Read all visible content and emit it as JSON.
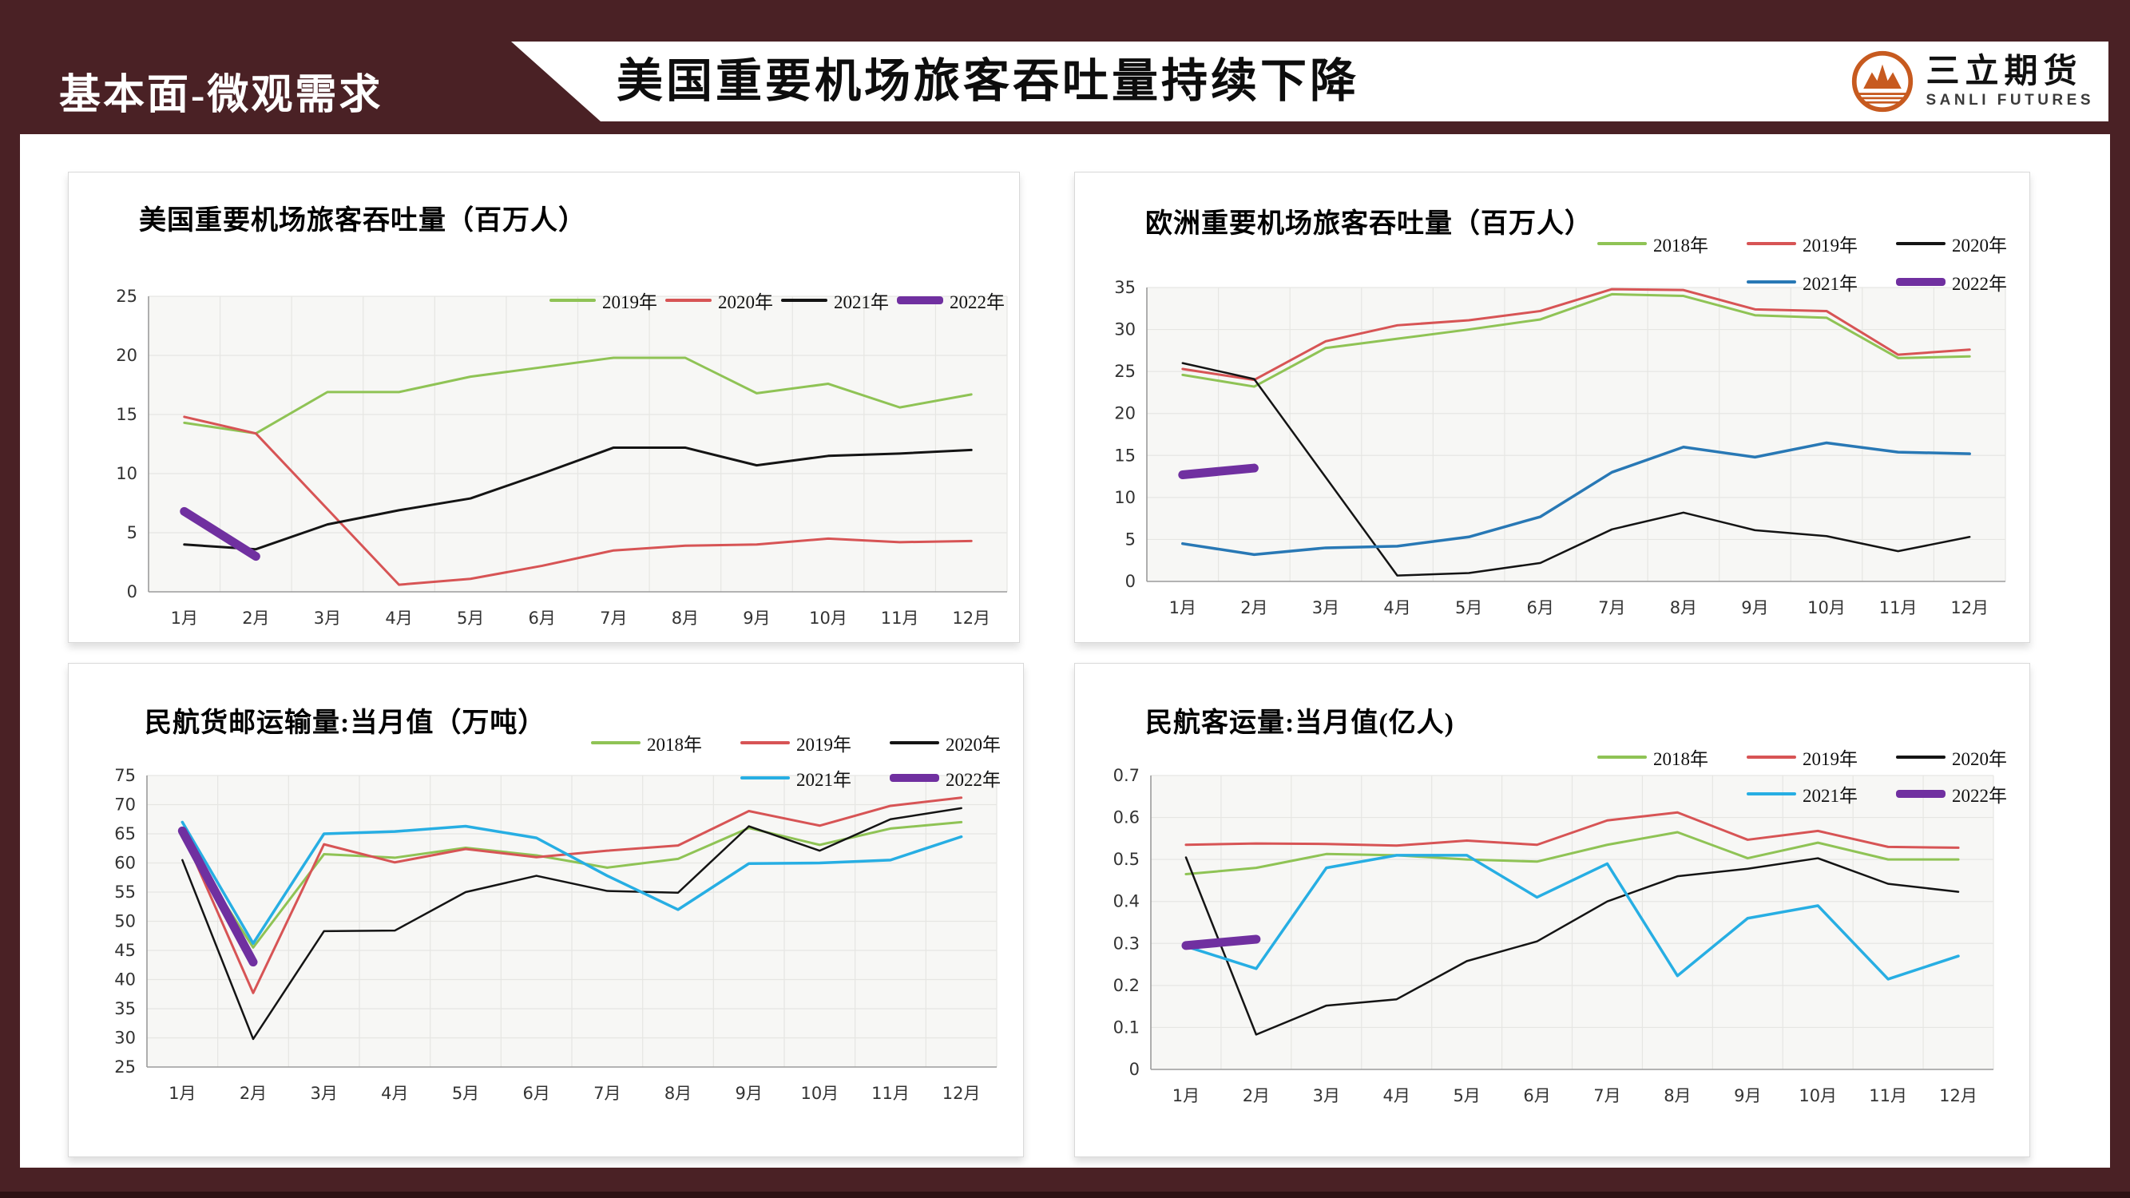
{
  "header": {
    "section_label": "基本面-微观需求",
    "title": "美国重要机场旅客吞吐量持续下降",
    "logo": {
      "cn": "三立期货",
      "en": "SANLI FUTURES",
      "mark_color": "#C75A1F"
    }
  },
  "colors": {
    "slide_maroon": "#4A2125",
    "slide_maroon_dark": "#2D1113",
    "plot_background": "#F7F7F5",
    "gridline": "#E6E6E3",
    "axis_line": "#9B9B9B",
    "tick_text": "#333333"
  },
  "chart_data": [
    {
      "type": "line",
      "title": "美国重要机场旅客吞吐量（百万人）",
      "categories": [
        "1月",
        "2月",
        "3月",
        "4月",
        "5月",
        "6月",
        "7月",
        "8月",
        "9月",
        "10月",
        "11月",
        "12月"
      ],
      "ylim": [
        0,
        25
      ],
      "ytick_values": [
        0,
        5,
        10,
        15,
        20,
        25
      ],
      "ytick_labels": [
        "0",
        "5",
        "10",
        "15",
        "20",
        "25"
      ],
      "grid": true,
      "legend_position": "top-right",
      "legend_split": 4,
      "series": [
        {
          "name": "2019年",
          "color": "#8FC355",
          "width": 3,
          "values": [
            14.3,
            13.4,
            16.9,
            16.9,
            18.2,
            19.0,
            19.8,
            19.8,
            16.8,
            17.6,
            15.6,
            16.7
          ]
        },
        {
          "name": "2020年",
          "color": "#D75455",
          "width": 3,
          "values": [
            14.8,
            13.4,
            7.0,
            0.6,
            1.1,
            2.2,
            3.5,
            3.9,
            4.0,
            4.5,
            4.2,
            4.3
          ]
        },
        {
          "name": "2021年",
          "color": "#141414",
          "width": 3,
          "values": [
            4.0,
            3.6,
            5.7,
            6.9,
            7.9,
            10.0,
            12.2,
            12.2,
            10.7,
            11.5,
            11.7,
            12.0
          ]
        },
        {
          "name": "2022年",
          "color": "#7030A0",
          "width": 11,
          "values": [
            6.8,
            3.0
          ]
        }
      ]
    },
    {
      "type": "line",
      "title": "欧洲重要机场旅客吞吐量（百万人）",
      "categories": [
        "1月",
        "2月",
        "3月",
        "4月",
        "5月",
        "6月",
        "7月",
        "8月",
        "9月",
        "10月",
        "11月",
        "12月"
      ],
      "ylim": [
        0,
        35
      ],
      "ytick_values": [
        0,
        5,
        10,
        15,
        20,
        25,
        30,
        35
      ],
      "ytick_labels": [
        "0",
        "5",
        "10",
        "15",
        "20",
        "25",
        "30",
        "35"
      ],
      "grid": true,
      "legend_position": "top-right",
      "legend_split": 3,
      "series": [
        {
          "name": "2018年",
          "color": "#8FC355",
          "width": 3,
          "values": [
            24.6,
            23.2,
            27.8,
            28.9,
            30.0,
            31.2,
            34.2,
            34.0,
            31.7,
            31.4,
            26.6,
            26.8
          ]
        },
        {
          "name": "2019年",
          "color": "#D75455",
          "width": 3,
          "values": [
            25.3,
            24.0,
            28.6,
            30.5,
            31.1,
            32.2,
            34.8,
            34.7,
            32.4,
            32.2,
            27.0,
            27.6
          ]
        },
        {
          "name": "2020年",
          "color": "#141414",
          "width": 2.5,
          "values": [
            26.0,
            24.1,
            12.4,
            0.7,
            1.0,
            2.2,
            6.2,
            8.2,
            6.1,
            5.4,
            3.6,
            5.3
          ]
        },
        {
          "name": "2021年",
          "color": "#2878B5",
          "width": 3.5,
          "values": [
            4.5,
            3.2,
            4.0,
            4.2,
            5.3,
            7.7,
            13.0,
            16.0,
            14.8,
            16.5,
            15.4,
            15.2
          ]
        },
        {
          "name": "2022年",
          "color": "#7030A0",
          "width": 11,
          "values": [
            12.7,
            13.5
          ]
        }
      ]
    },
    {
      "type": "line",
      "title": "民航货邮运输量:当月值（万吨）",
      "categories": [
        "1月",
        "2月",
        "3月",
        "4月",
        "5月",
        "6月",
        "7月",
        "8月",
        "9月",
        "10月",
        "11月",
        "12月"
      ],
      "ylim": [
        25,
        75
      ],
      "ytick_values": [
        25,
        30,
        35,
        40,
        45,
        50,
        55,
        60,
        65,
        70,
        75
      ],
      "ytick_labels": [
        "25",
        "30",
        "35",
        "40",
        "45",
        "50",
        "55",
        "60",
        "65",
        "70",
        "75"
      ],
      "grid": true,
      "legend_position": "top-right",
      "legend_split": 3,
      "series": [
        {
          "name": "2018年",
          "color": "#8FC355",
          "width": 3,
          "values": [
            64.4,
            45.5,
            61.5,
            60.9,
            62.6,
            61.3,
            59.2,
            60.7,
            66.0,
            63.1,
            65.9,
            67.0
          ]
        },
        {
          "name": "2019年",
          "color": "#D75455",
          "width": 3,
          "values": [
            65.3,
            37.7,
            63.2,
            60.1,
            62.4,
            61.0,
            62.1,
            63.0,
            68.9,
            66.4,
            69.8,
            71.2
          ]
        },
        {
          "name": "2020年",
          "color": "#141414",
          "width": 2.5,
          "values": [
            60.5,
            29.8,
            48.3,
            48.4,
            55.0,
            57.8,
            55.2,
            54.9,
            66.3,
            62.1,
            67.5,
            69.4
          ]
        },
        {
          "name": "2021年",
          "color": "#27AEE3",
          "width": 3.5,
          "values": [
            67.0,
            46.2,
            65.0,
            65.4,
            66.3,
            64.3,
            57.8,
            52.0,
            59.9,
            60.0,
            60.5,
            64.5
          ]
        },
        {
          "name": "2022年",
          "color": "#7030A0",
          "width": 11,
          "values": [
            65.5,
            43.0
          ]
        }
      ]
    },
    {
      "type": "line",
      "title": "民航客运量:当月值(亿人)",
      "categories": [
        "1月",
        "2月",
        "3月",
        "4月",
        "5月",
        "6月",
        "7月",
        "8月",
        "9月",
        "10月",
        "11月",
        "12月"
      ],
      "ylim": [
        0,
        0.7
      ],
      "ytick_values": [
        0,
        0.1,
        0.2,
        0.3,
        0.4,
        0.5,
        0.6,
        0.7
      ],
      "ytick_labels": [
        "0",
        "0.1",
        "0.2",
        "0.3",
        "0.4",
        "0.5",
        "0.6",
        "0.7"
      ],
      "grid": true,
      "legend_position": "top-right",
      "legend_split": 3,
      "series": [
        {
          "name": "2018年",
          "color": "#8FC355",
          "width": 3,
          "values": [
            0.465,
            0.48,
            0.513,
            0.51,
            0.5,
            0.495,
            0.535,
            0.565,
            0.503,
            0.54,
            0.5,
            0.5
          ]
        },
        {
          "name": "2019年",
          "color": "#D75455",
          "width": 3,
          "values": [
            0.535,
            0.538,
            0.537,
            0.533,
            0.545,
            0.535,
            0.593,
            0.612,
            0.547,
            0.568,
            0.53,
            0.528
          ]
        },
        {
          "name": "2020年",
          "color": "#141414",
          "width": 2.5,
          "values": [
            0.505,
            0.083,
            0.152,
            0.167,
            0.258,
            0.305,
            0.4,
            0.46,
            0.478,
            0.503,
            0.442,
            0.423
          ]
        },
        {
          "name": "2021年",
          "color": "#27AEE3",
          "width": 3.5,
          "values": [
            0.293,
            0.24,
            0.48,
            0.51,
            0.51,
            0.41,
            0.49,
            0.223,
            0.36,
            0.39,
            0.215,
            0.27
          ]
        },
        {
          "name": "2022年",
          "color": "#7030A0",
          "width": 11,
          "values": [
            0.295,
            0.31
          ]
        }
      ]
    }
  ]
}
